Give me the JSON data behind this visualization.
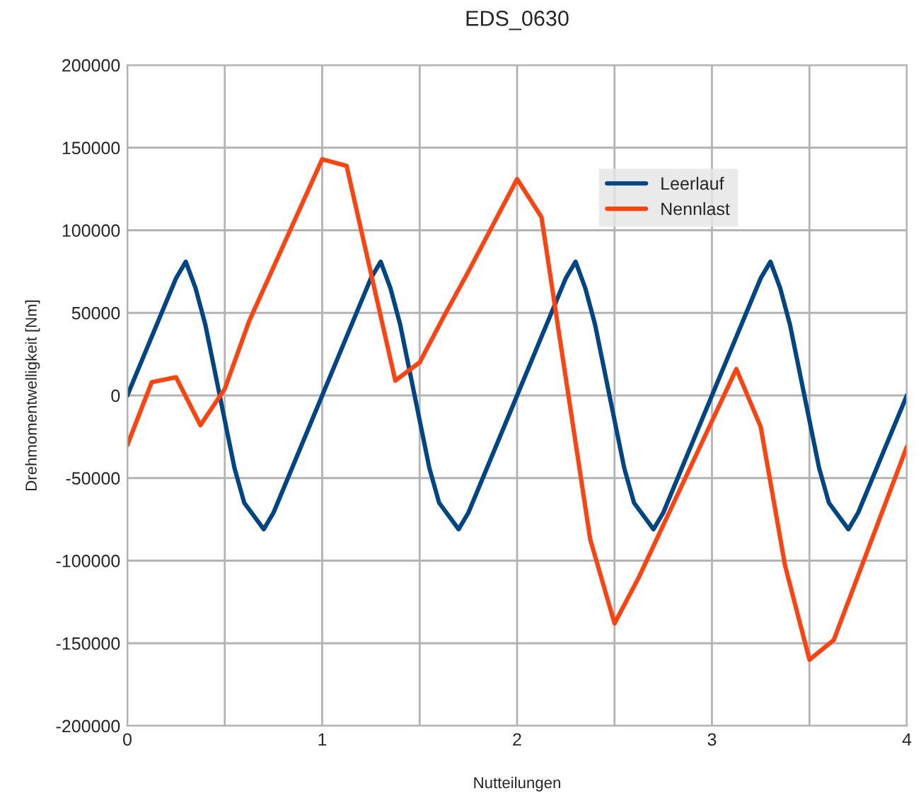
{
  "chart_data": {
    "type": "line",
    "title": "EDS_0630",
    "xlabel": "Nutteilungen",
    "ylabel": "Drehmomentwelligkeit [Nm]",
    "series": [
      {
        "name": "Leerlauf",
        "color": "#004586",
        "x": [
          0,
          0.25,
          0.3,
          0.35,
          0.4,
          0.55,
          0.6,
          0.7,
          0.75,
          1,
          1.25,
          1.3,
          1.35,
          1.4,
          1.55,
          1.6,
          1.7,
          1.75,
          2,
          2.25,
          2.3,
          2.35,
          2.4,
          2.55,
          2.6,
          2.7,
          2.75,
          3,
          3.25,
          3.3,
          3.35,
          3.4,
          3.55,
          3.6,
          3.7,
          3.75,
          4
        ],
        "values": [
          0,
          71000,
          81000,
          65000,
          43000,
          -44000,
          -65000,
          -81000,
          -71000,
          0,
          71000,
          81000,
          65000,
          43000,
          -44000,
          -65000,
          -81000,
          -71000,
          0,
          71000,
          81000,
          65000,
          43000,
          -44000,
          -65000,
          -81000,
          -71000,
          0,
          71000,
          81000,
          65000,
          43000,
          -44000,
          -65000,
          -81000,
          -71000,
          0
        ]
      },
      {
        "name": "Nennlast",
        "color": "#ff420e",
        "x": [
          0,
          0.125,
          0.25,
          0.375,
          0.5,
          0.625,
          1,
          1.125,
          1.375,
          1.5,
          1.625,
          1.75,
          2,
          2.125,
          2.375,
          2.5,
          2.625,
          3.125,
          3.25,
          3.375,
          3.5,
          3.625,
          4
        ],
        "values": [
          -30000,
          8000,
          11000,
          -18000,
          4000,
          45000,
          143000,
          139000,
          9000,
          20000,
          48000,
          75000,
          131000,
          108000,
          -87000,
          -138000,
          -110000,
          16000,
          -19000,
          -103000,
          -160000,
          -148000,
          -31000
        ]
      }
    ],
    "xlim": [
      0,
      4
    ],
    "xticks": [
      0,
      {
        "value": 0.5,
        "label": null
      },
      1,
      {
        "value": 1.5,
        "label": null
      },
      2,
      {
        "value": 2.5,
        "label": null
      },
      3,
      {
        "value": 3.5,
        "label": null
      },
      4
    ],
    "ylim": [
      -200000,
      200000
    ],
    "yticks": [
      -200000,
      -150000,
      -100000,
      -50000,
      0,
      50000,
      100000,
      150000,
      200000
    ],
    "grid": true,
    "legend": "top right",
    "marker": "none",
    "line_style": "solid"
  }
}
